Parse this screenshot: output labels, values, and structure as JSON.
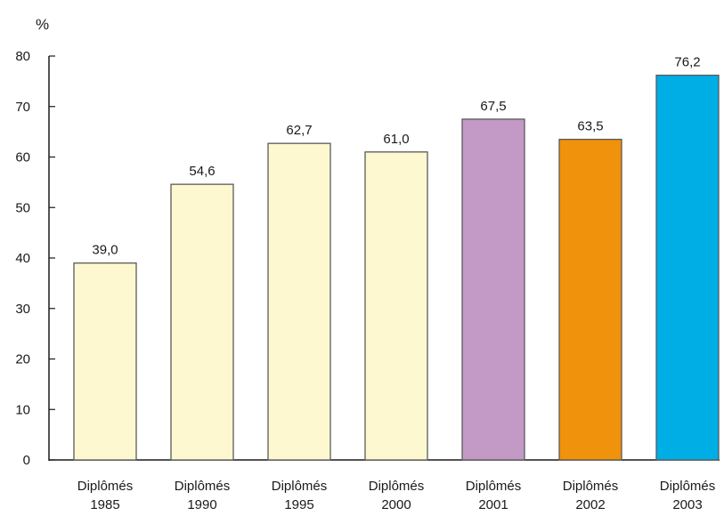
{
  "chart_data": {
    "type": "bar",
    "unit_label": "%",
    "categories": [
      [
        "Diplômés",
        "1985"
      ],
      [
        "Diplômés",
        "1990"
      ],
      [
        "Diplômés",
        "1995"
      ],
      [
        "Diplômés",
        "2000"
      ],
      [
        "Diplômés",
        "2001"
      ],
      [
        "Diplômés",
        "2002"
      ],
      [
        "Diplômés",
        "2003"
      ]
    ],
    "values": [
      39.0,
      54.6,
      62.7,
      61.0,
      67.5,
      63.5,
      76.2
    ],
    "value_labels": [
      "39,0",
      "54,6",
      "62,7",
      "61,0",
      "67,5",
      "63,5",
      "76,2"
    ],
    "bar_colors": [
      "#fdf8cf",
      "#fdf8cf",
      "#fdf8cf",
      "#fdf8cf",
      "#c399c5",
      "#f0920b",
      "#00aee6"
    ],
    "ylim": [
      0,
      80
    ],
    "yticks": [
      0,
      10,
      20,
      30,
      40,
      50,
      60,
      70,
      80
    ],
    "grid": false,
    "legend": "none"
  }
}
